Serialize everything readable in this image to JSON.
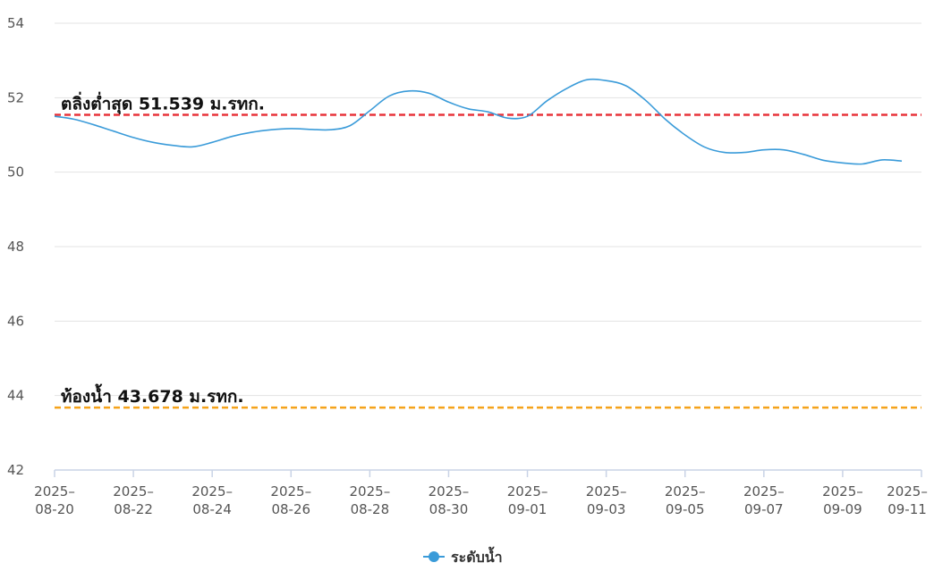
{
  "chart_data": {
    "type": "line",
    "title": "",
    "xlabel": "",
    "ylabel": "",
    "ylim": [
      42,
      54
    ],
    "yticks": [
      42,
      44,
      46,
      48,
      50,
      52,
      54
    ],
    "xlim": [
      "2025-08-20",
      "2025-09-11"
    ],
    "xticks": [
      {
        "date": "2025-08-20",
        "line1": "2025–",
        "line2": "08-20"
      },
      {
        "date": "2025-08-22",
        "line1": "2025–",
        "line2": "08-22"
      },
      {
        "date": "2025-08-24",
        "line1": "2025–",
        "line2": "08-24"
      },
      {
        "date": "2025-08-26",
        "line1": "2025–",
        "line2": "08-26"
      },
      {
        "date": "2025-08-28",
        "line1": "2025–",
        "line2": "08-28"
      },
      {
        "date": "2025-08-30",
        "line1": "2025–",
        "line2": "08-30"
      },
      {
        "date": "2025-09-01",
        "line1": "2025–",
        "line2": "09-01"
      },
      {
        "date": "2025-09-03",
        "line1": "2025–",
        "line2": "09-03"
      },
      {
        "date": "2025-09-05",
        "line1": "2025–",
        "line2": "09-05"
      },
      {
        "date": "2025-09-07",
        "line1": "2025–",
        "line2": "09-07"
      },
      {
        "date": "2025-09-09",
        "line1": "2025–",
        "line2": "09-09"
      },
      {
        "date": "2025-09-11",
        "line1": "2025–",
        "line2": "09-11"
      }
    ],
    "grid": "horizontal",
    "legend_position": "bottom-center",
    "series": [
      {
        "name": "ระดับน้ำ",
        "color": "#3a9bd9",
        "x": [
          "2025-08-20T00:00",
          "2025-08-20T12:00",
          "2025-08-21T00:00",
          "2025-08-21T12:00",
          "2025-08-22T00:00",
          "2025-08-22T12:00",
          "2025-08-23T00:00",
          "2025-08-23T12:00",
          "2025-08-24T00:00",
          "2025-08-24T12:00",
          "2025-08-25T00:00",
          "2025-08-25T12:00",
          "2025-08-26T00:00",
          "2025-08-26T12:00",
          "2025-08-27T00:00",
          "2025-08-27T12:00",
          "2025-08-28T00:00",
          "2025-08-28T12:00",
          "2025-08-29T00:00",
          "2025-08-29T12:00",
          "2025-08-30T00:00",
          "2025-08-30T12:00",
          "2025-08-31T00:00",
          "2025-08-31T12:00",
          "2025-09-01T00:00",
          "2025-09-01T12:00",
          "2025-09-02T00:00",
          "2025-09-02T12:00",
          "2025-09-03T00:00",
          "2025-09-03T12:00",
          "2025-09-04T00:00",
          "2025-09-04T12:00",
          "2025-09-05T00:00",
          "2025-09-05T12:00",
          "2025-09-06T00:00",
          "2025-09-06T12:00",
          "2025-09-07T00:00",
          "2025-09-07T12:00",
          "2025-09-08T00:00",
          "2025-09-08T12:00",
          "2025-09-09T00:00",
          "2025-09-09T12:00",
          "2025-09-10T00:00",
          "2025-09-10T12:00"
        ],
        "values": [
          51.5,
          51.42,
          51.27,
          51.1,
          50.93,
          50.8,
          50.72,
          50.68,
          50.8,
          50.96,
          51.07,
          51.14,
          51.17,
          51.15,
          51.14,
          51.25,
          51.65,
          52.05,
          52.18,
          52.12,
          51.88,
          51.7,
          51.62,
          51.45,
          51.5,
          51.92,
          52.25,
          52.48,
          52.46,
          52.32,
          51.93,
          51.42,
          51.0,
          50.67,
          50.53,
          50.53,
          50.6,
          50.6,
          50.48,
          50.32,
          50.25,
          50.22,
          50.33,
          50.3
        ]
      }
    ],
    "reference_lines": [
      {
        "label": "ตลิ่งต่ำสุด 51.539 ม.รทก.",
        "value": 51.539,
        "color": "#e8333a",
        "style": "dashed"
      },
      {
        "label": "ท้องน้ำ 43.678 ม.รทก.",
        "value": 43.678,
        "color": "#f5a31a",
        "style": "dashed"
      }
    ],
    "colors": {
      "grid": "#e3e3e3",
      "axis": "#c9d3e6",
      "tick_text": "#555555"
    }
  }
}
